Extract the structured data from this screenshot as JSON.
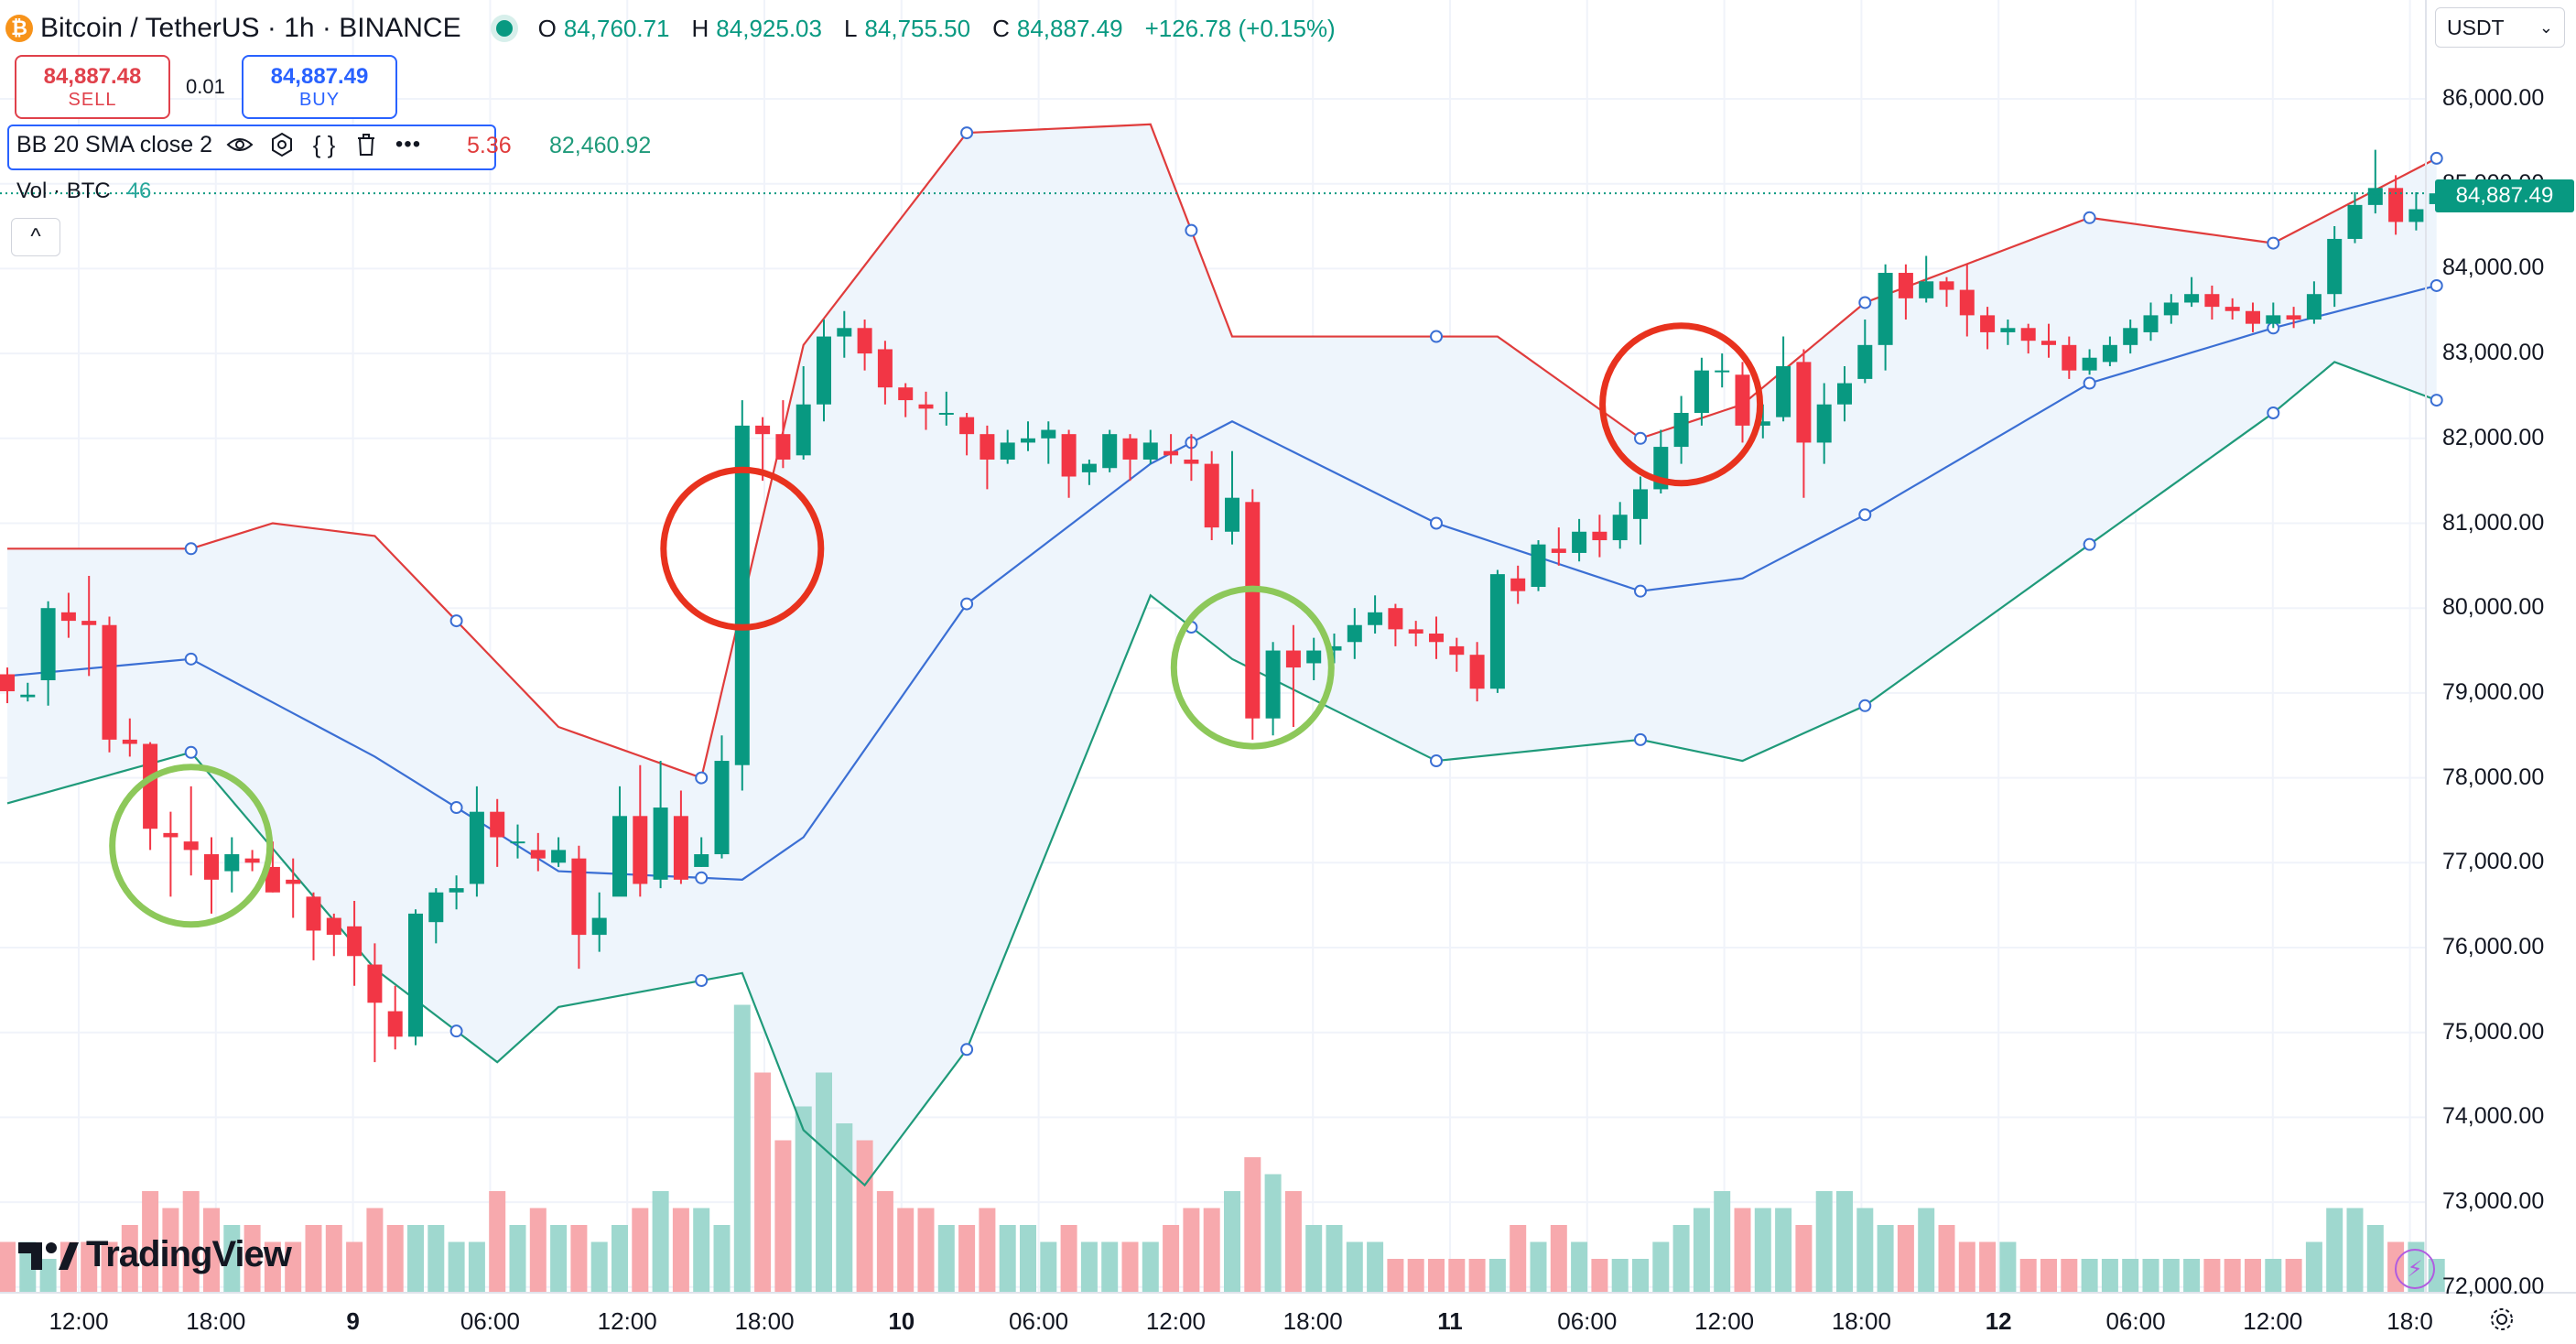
{
  "header": {
    "symbol_title": "Bitcoin / TetherUS · 1h · BINANCE",
    "open_key": "O",
    "open": "84,760.71",
    "high_key": "H",
    "high": "84,925.03",
    "low_key": "L",
    "low": "84,755.50",
    "close_key": "C",
    "close": "84,887.49",
    "change": "+126.78 (+0.15%)"
  },
  "trade": {
    "sell_price": "84,887.48",
    "sell_label": "SELL",
    "spread": "0.01",
    "buy_price": "84,887.49",
    "buy_label": "BUY"
  },
  "indicators": {
    "bb_label": "BB 20 SMA close 2",
    "bb_partial_value": "5.36",
    "bb_value": "82,460.92",
    "vol_label": "Vol · BTC",
    "vol_value": "46",
    "collapse_glyph": "^"
  },
  "currency": "USDT",
  "last_price_tag": "84,887.49",
  "watermark": "TradingView",
  "colors": {
    "up": "#089981",
    "down": "#f23645",
    "bb_upper": "#e03c3c",
    "bb_basis": "#3b6fd4",
    "bb_lower": "#1f9a7a",
    "bb_fill": "#eef5fc",
    "circle_red": "#e8321e",
    "circle_green": "#8dc85a",
    "sell": "#e0414b",
    "buy": "#2962ff"
  },
  "chart_data": {
    "type": "candlestick",
    "title": "Bitcoin / TetherUS · 1h · BINANCE",
    "y_axis_ticks": [
      "86,000.00",
      "85,000.00",
      "84,000.00",
      "83,000.00",
      "82,000.00",
      "81,000.00",
      "80,000.00",
      "79,000.00",
      "78,000.00",
      "77,000.00",
      "76,000.00",
      "75,000.00",
      "74,000.00",
      "73,000.00",
      "72,000.00"
    ],
    "ylim": [
      72000,
      86500
    ],
    "x_axis_ticks": [
      "12:00",
      "18:00",
      "9",
      "06:00",
      "12:00",
      "18:00",
      "10",
      "06:00",
      "12:00",
      "18:00",
      "11",
      "06:00",
      "12:00",
      "18:00",
      "12",
      "06:00",
      "12:00",
      "18:0"
    ],
    "timeframe": "1h",
    "candles": [
      [
        79220,
        79020,
        79300,
        78880
      ],
      [
        78950,
        78980,
        79120,
        78900
      ],
      [
        79150,
        80000,
        80080,
        78850
      ],
      [
        79950,
        79850,
        80180,
        79650
      ],
      [
        79850,
        79800,
        80380,
        79200
      ],
      [
        79800,
        78450,
        79900,
        78300
      ],
      [
        78450,
        78400,
        78700,
        78250
      ],
      [
        78400,
        77400,
        78420,
        77150
      ],
      [
        77350,
        77300,
        77600,
        76600
      ],
      [
        77250,
        77150,
        77900,
        76850
      ],
      [
        77100,
        76800,
        77300,
        76400
      ],
      [
        76900,
        77100,
        77300,
        76650
      ],
      [
        77050,
        77000,
        77150,
        76900
      ],
      [
        76950,
        76650,
        77250,
        76650
      ],
      [
        76800,
        76750,
        77050,
        76350
      ],
      [
        76600,
        76200,
        76650,
        75850
      ],
      [
        76350,
        76150,
        76400,
        75900
      ],
      [
        76250,
        75900,
        76550,
        75550
      ],
      [
        75800,
        75350,
        76050,
        74650
      ],
      [
        75250,
        74950,
        75550,
        74800
      ],
      [
        74950,
        76400,
        76450,
        74850
      ],
      [
        76300,
        76650,
        76700,
        76050
      ],
      [
        76650,
        76700,
        76850,
        76450
      ],
      [
        76750,
        77600,
        77900,
        76600
      ],
      [
        77600,
        77300,
        77750,
        76950
      ],
      [
        77250,
        77250,
        77450,
        77050
      ],
      [
        77150,
        77050,
        77350,
        76900
      ],
      [
        77000,
        77150,
        77300,
        76950
      ],
      [
        77050,
        76150,
        77200,
        75750
      ],
      [
        76150,
        76350,
        76650,
        75950
      ],
      [
        76600,
        77550,
        77900,
        76700
      ],
      [
        77550,
        76750,
        78150,
        76600
      ],
      [
        76800,
        77650,
        78200,
        76700
      ],
      [
        77550,
        76800,
        77850,
        76750
      ],
      [
        76950,
        77100,
        77300,
        76950
      ],
      [
        77100,
        78200,
        78500,
        77050
      ],
      [
        78150,
        82150,
        82450,
        77850
      ],
      [
        82150,
        82050,
        82250,
        81500
      ],
      [
        82050,
        81750,
        82450,
        81650
      ],
      [
        81800,
        82400,
        82850,
        81750
      ],
      [
        82400,
        83200,
        83400,
        82200
      ],
      [
        83200,
        83300,
        83500,
        82950
      ],
      [
        83300,
        83000,
        83400,
        82800
      ],
      [
        83050,
        82600,
        83150,
        82400
      ],
      [
        82600,
        82450,
        82650,
        82250
      ],
      [
        82400,
        82350,
        82550,
        82100
      ],
      [
        82300,
        82300,
        82550,
        82150
      ],
      [
        82250,
        82050,
        82300,
        81800
      ],
      [
        82050,
        81750,
        82150,
        81400
      ],
      [
        81750,
        81950,
        82100,
        81700
      ],
      [
        81950,
        82000,
        82200,
        81850
      ],
      [
        82000,
        82100,
        82200,
        81700
      ],
      [
        82050,
        81550,
        82100,
        81300
      ],
      [
        81600,
        81700,
        81750,
        81450
      ],
      [
        81650,
        82050,
        82100,
        81600
      ],
      [
        82000,
        81750,
        82050,
        81500
      ],
      [
        81750,
        81950,
        82100,
        81700
      ],
      [
        81850,
        81800,
        82050,
        81700
      ],
      [
        81750,
        81700,
        82050,
        81500
      ],
      [
        81700,
        80950,
        81850,
        80800
      ],
      [
        80900,
        81300,
        81850,
        80750
      ],
      [
        81250,
        78700,
        81400,
        78450
      ],
      [
        78700,
        79500,
        79600,
        78500
      ],
      [
        79500,
        79300,
        79800,
        78600
      ],
      [
        79350,
        79500,
        79650,
        79150
      ],
      [
        79500,
        79550,
        79700,
        79350
      ],
      [
        79600,
        79800,
        80000,
        79400
      ],
      [
        79800,
        79950,
        80150,
        79700
      ],
      [
        80000,
        79750,
        80050,
        79550
      ],
      [
        79750,
        79700,
        79850,
        79550
      ],
      [
        79700,
        79600,
        79900,
        79400
      ],
      [
        79550,
        79450,
        79650,
        79250
      ],
      [
        79450,
        79050,
        79600,
        78900
      ],
      [
        79050,
        80400,
        80450,
        79000
      ],
      [
        80350,
        80200,
        80500,
        80050
      ],
      [
        80250,
        80750,
        80800,
        80200
      ],
      [
        80700,
        80650,
        80950,
        80500
      ],
      [
        80650,
        80900,
        81050,
        80550
      ],
      [
        80900,
        80800,
        81100,
        80600
      ],
      [
        80800,
        81100,
        81250,
        80700
      ],
      [
        81050,
        81400,
        81550,
        80750
      ],
      [
        81400,
        81900,
        82100,
        81350
      ],
      [
        81900,
        82300,
        82500,
        81700
      ],
      [
        82300,
        82800,
        82950,
        82150
      ],
      [
        82800,
        82800,
        83000,
        82600
      ],
      [
        82750,
        82150,
        82900,
        81950
      ],
      [
        82150,
        82200,
        82400,
        82000
      ],
      [
        82250,
        82850,
        83200,
        82200
      ],
      [
        82900,
        81950,
        83050,
        81300
      ],
      [
        81950,
        82400,
        82650,
        81700
      ],
      [
        82400,
        82650,
        82850,
        82200
      ],
      [
        82700,
        83100,
        83400,
        82650
      ],
      [
        83100,
        83950,
        84050,
        82800
      ],
      [
        83950,
        83650,
        84050,
        83400
      ],
      [
        83650,
        83850,
        84150,
        83600
      ],
      [
        83850,
        83750,
        83900,
        83550
      ],
      [
        83750,
        83450,
        84050,
        83200
      ],
      [
        83450,
        83250,
        83550,
        83050
      ],
      [
        83250,
        83300,
        83400,
        83100
      ],
      [
        83300,
        83150,
        83350,
        83000
      ],
      [
        83150,
        83100,
        83350,
        82950
      ],
      [
        83100,
        82800,
        83200,
        82700
      ],
      [
        82800,
        82950,
        83050,
        82750
      ],
      [
        82900,
        83100,
        83200,
        82850
      ],
      [
        83100,
        83300,
        83400,
        83000
      ],
      [
        83250,
        83450,
        83600,
        83150
      ],
      [
        83450,
        83600,
        83700,
        83350
      ],
      [
        83600,
        83700,
        83900,
        83550
      ],
      [
        83700,
        83550,
        83800,
        83400
      ],
      [
        83550,
        83500,
        83650,
        83400
      ],
      [
        83500,
        83350,
        83600,
        83250
      ],
      [
        83350,
        83450,
        83600,
        83300
      ],
      [
        83450,
        83400,
        83550,
        83300
      ],
      [
        83400,
        83700,
        83850,
        83350
      ],
      [
        83700,
        84350,
        84500,
        83550
      ],
      [
        84350,
        84750,
        84900,
        84300
      ],
      [
        84750,
        84950,
        85400,
        84650
      ],
      [
        84950,
        84550,
        85100,
        84400
      ],
      [
        84550,
        84700,
        84900,
        84450
      ],
      [
        84760,
        84887,
        84925,
        84755
      ]
    ],
    "volume": [
      3,
      3,
      2,
      3,
      3,
      3,
      4,
      6,
      5,
      6,
      5,
      4,
      4,
      3,
      3,
      4,
      4,
      3,
      5,
      4,
      4,
      4,
      3,
      3,
      6,
      4,
      5,
      4,
      4,
      3,
      4,
      5,
      6,
      5,
      5,
      4,
      17,
      13,
      9,
      11,
      13,
      10,
      9,
      6,
      5,
      5,
      4,
      4,
      5,
      4,
      4,
      3,
      4,
      3,
      3,
      3,
      3,
      4,
      5,
      5,
      6,
      8,
      7,
      6,
      4,
      4,
      3,
      3,
      2,
      2,
      2,
      2,
      2,
      2,
      4,
      3,
      4,
      3,
      2,
      2,
      2,
      3,
      4,
      5,
      6,
      5,
      5,
      5,
      4,
      6,
      6,
      5,
      4,
      4,
      5,
      4,
      3,
      3,
      3,
      2,
      2,
      2,
      2,
      2,
      2,
      2,
      2,
      2,
      2,
      2,
      2,
      2,
      2,
      3,
      5,
      5,
      4,
      3,
      3,
      2
    ],
    "bollinger": {
      "period": 20,
      "source": "close",
      "stddev": 2,
      "upper_key_points": [
        [
          0,
          80700
        ],
        [
          9,
          80700
        ],
        [
          13,
          81000
        ],
        [
          18,
          80850
        ],
        [
          27,
          78600
        ],
        [
          34,
          78000
        ],
        [
          39,
          83100
        ],
        [
          47,
          85600
        ],
        [
          56,
          85700
        ],
        [
          60,
          83200
        ],
        [
          73,
          83200
        ],
        [
          80,
          82000
        ],
        [
          85,
          82400
        ],
        [
          91,
          83600
        ],
        [
          102,
          84600
        ],
        [
          111,
          84300
        ],
        [
          119,
          85300
        ]
      ],
      "basis_key_points": [
        [
          0,
          79200
        ],
        [
          9,
          79400
        ],
        [
          18,
          78250
        ],
        [
          27,
          76900
        ],
        [
          36,
          76800
        ],
        [
          39,
          77300
        ],
        [
          47,
          80050
        ],
        [
          56,
          81700
        ],
        [
          60,
          82200
        ],
        [
          70,
          81000
        ],
        [
          80,
          80200
        ],
        [
          85,
          80350
        ],
        [
          91,
          81100
        ],
        [
          102,
          82650
        ],
        [
          111,
          83300
        ],
        [
          119,
          83800
        ]
      ],
      "lower_key_points": [
        [
          0,
          77700
        ],
        [
          9,
          78300
        ],
        [
          18,
          75750
        ],
        [
          24,
          74650
        ],
        [
          27,
          75300
        ],
        [
          36,
          75700
        ],
        [
          39,
          73850
        ],
        [
          42,
          73200
        ],
        [
          47,
          74800
        ],
        [
          56,
          80150
        ],
        [
          60,
          79400
        ],
        [
          70,
          78200
        ],
        [
          80,
          78450
        ],
        [
          85,
          78200
        ],
        [
          91,
          78850
        ],
        [
          102,
          80750
        ],
        [
          111,
          82300
        ],
        [
          114,
          82900
        ],
        [
          119,
          82450
        ]
      ]
    },
    "annotations": [
      {
        "shape": "circle",
        "color": "green",
        "candle": 9,
        "price": 77200
      },
      {
        "shape": "circle",
        "color": "red",
        "candle": 36,
        "price": 80700
      },
      {
        "shape": "circle",
        "color": "green",
        "candle": 61,
        "price": 79300
      },
      {
        "shape": "circle",
        "color": "red",
        "candle": 82,
        "price": 82400
      }
    ]
  }
}
